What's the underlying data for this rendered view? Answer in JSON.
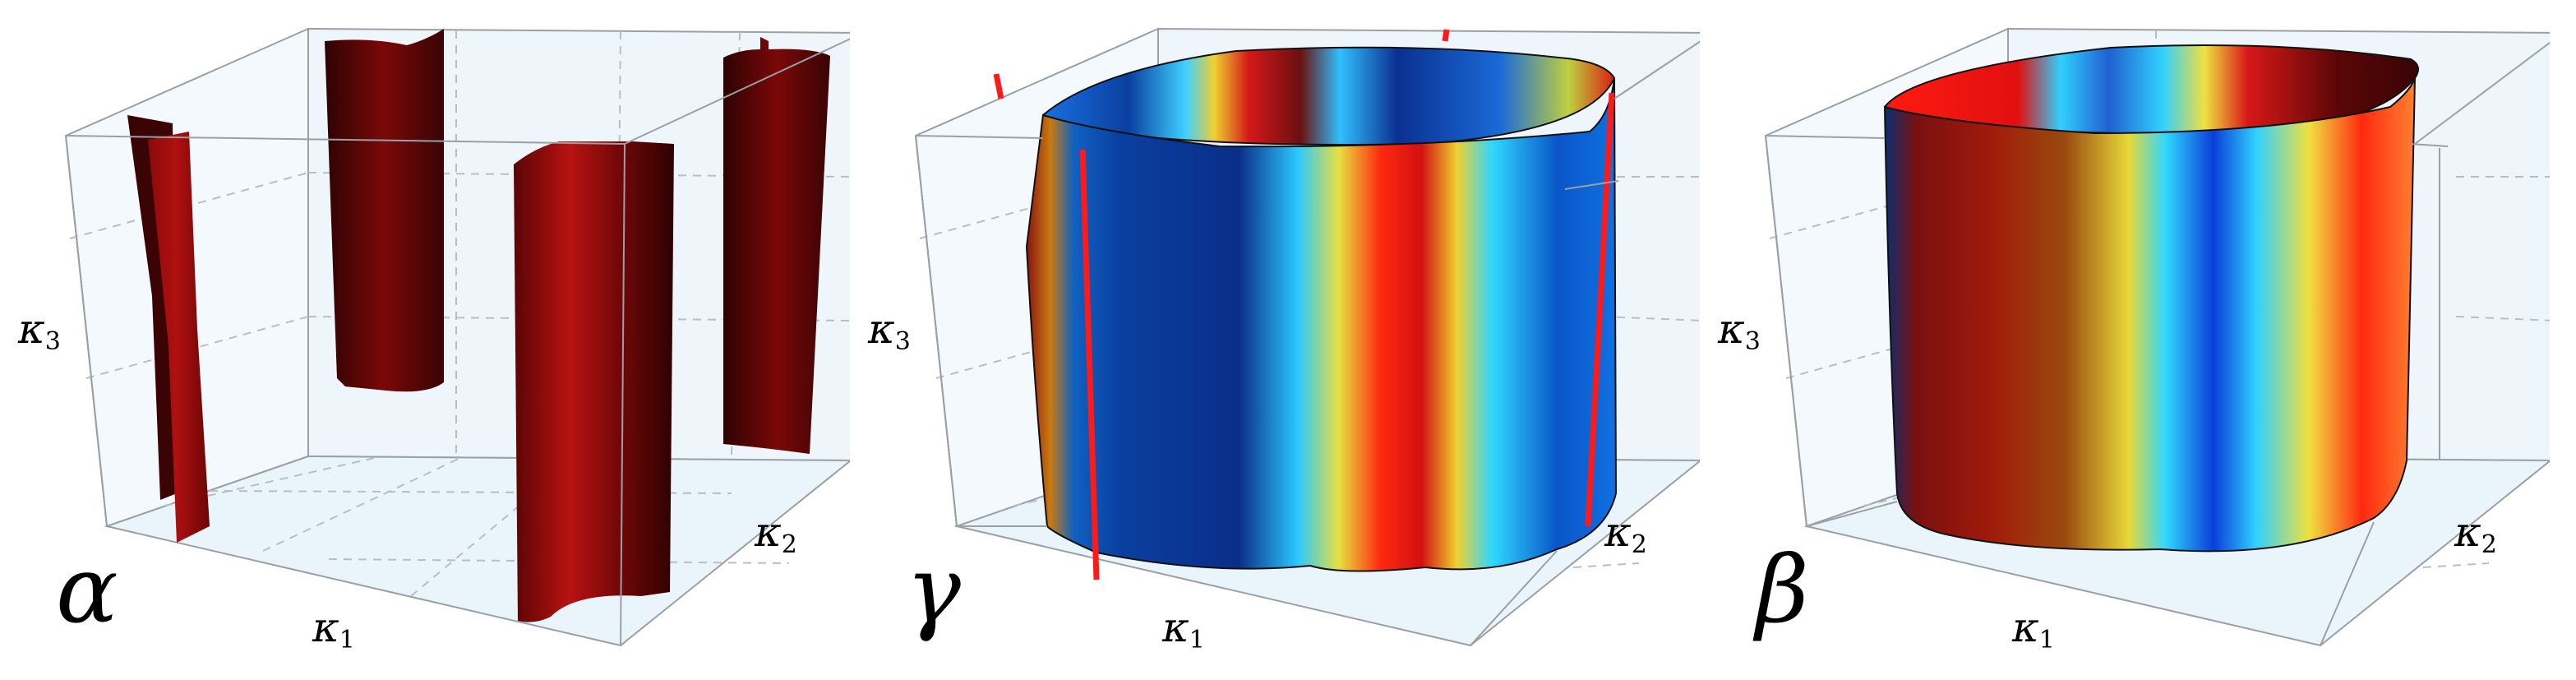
{
  "panels": [
    {
      "id": "alpha",
      "name": "α",
      "axes": {
        "x": "κ",
        "x_sub": "1",
        "y": "κ",
        "y_sub": "2",
        "z": "κ",
        "z_sub": "3"
      }
    },
    {
      "id": "gamma",
      "name": "γ",
      "axes": {
        "x": "κ",
        "x_sub": "1",
        "y": "κ",
        "y_sub": "2",
        "z": "κ",
        "z_sub": "3"
      }
    },
    {
      "id": "beta",
      "name": "β",
      "axes": {
        "x": "κ",
        "x_sub": "1",
        "y": "κ",
        "y_sub": "2",
        "z": "κ",
        "z_sub": "3"
      }
    }
  ],
  "colors": {
    "box_face": "#eef6fc",
    "box_edge": "#9aa0a6",
    "grid": "#b8bec4",
    "dark_red": "#3a0404",
    "red": "#a30a0a",
    "bright_red": "#ff1a1a",
    "blue": "#0a3fa0",
    "cyan": "#27c9ff",
    "yellow": "#f0e040"
  }
}
